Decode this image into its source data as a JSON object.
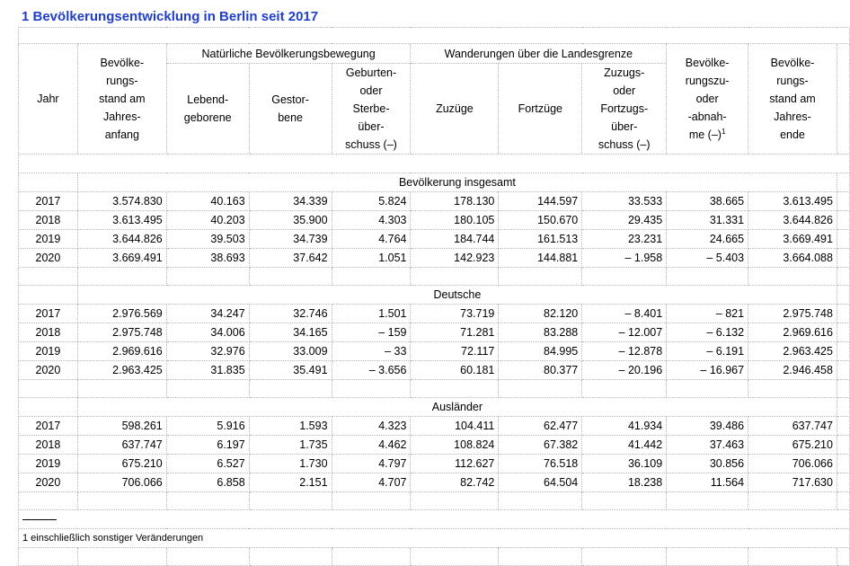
{
  "title": "1  Bevölkerungsentwicklung in Berlin seit 2017",
  "headers": {
    "jahr": "Jahr",
    "stand_anfang": "Bevölke-rungs-stand am Jahres-anfang",
    "natuerlich": "Natürliche Bevölkerungsbewegung",
    "lebend": "Lebend-geborene",
    "gestorben": "Gestor-bene",
    "geburten_sterbe": "Geburten-oder Sterbe-über-schuss (–)",
    "wanderungen": "Wanderungen über die Landesgrenze",
    "zuzuege": "Zuzüge",
    "fortzuege": "Fortzüge",
    "zuzugs_fortzugs": "Zuzugs-oder Fortzugs-über-schuss (–)",
    "zu_abnahme": "Bevölke-rungszu-oder -abnah-me (–)",
    "zu_abnahme_sup": "1",
    "stand_ende": "Bevölke-rungs-stand am Jahres-ende"
  },
  "sections": [
    {
      "label": "Bevölkerung insgesamt",
      "rows": [
        [
          "2017",
          "3.574.830",
          "40.163",
          "34.339",
          "5.824",
          "178.130",
          "144.597",
          "33.533",
          "38.665",
          "3.613.495"
        ],
        [
          "2018",
          "3.613.495",
          "40.203",
          "35.900",
          "4.303",
          "180.105",
          "150.670",
          "29.435",
          "31.331",
          "3.644.826"
        ],
        [
          "2019",
          "3.644.826",
          "39.503",
          "34.739",
          "4.764",
          "184.744",
          "161.513",
          "23.231",
          "24.665",
          "3.669.491"
        ],
        [
          "2020",
          "3.669.491",
          "38.693",
          "37.642",
          "1.051",
          "142.923",
          "144.881",
          "– 1.958",
          "– 5.403",
          "3.664.088"
        ]
      ]
    },
    {
      "label": "Deutsche",
      "rows": [
        [
          "2017",
          "2.976.569",
          "34.247",
          "32.746",
          "1.501",
          "73.719",
          "82.120",
          "– 8.401",
          "– 821",
          "2.975.748"
        ],
        [
          "2018",
          "2.975.748",
          "34.006",
          "34.165",
          "– 159",
          "71.281",
          "83.288",
          "– 12.007",
          "– 6.132",
          "2.969.616"
        ],
        [
          "2019",
          "2.969.616",
          "32.976",
          "33.009",
          "– 33",
          "72.117",
          "84.995",
          "– 12.878",
          "– 6.191",
          "2.963.425"
        ],
        [
          "2020",
          "2.963.425",
          "31.835",
          "35.491",
          "– 3.656",
          "60.181",
          "80.377",
          "– 20.196",
          "– 16.967",
          "2.946.458"
        ]
      ]
    },
    {
      "label": "Ausländer",
      "rows": [
        [
          "2017",
          "598.261",
          "5.916",
          "1.593",
          "4.323",
          "104.411",
          "62.477",
          "41.934",
          "39.486",
          "637.747"
        ],
        [
          "2018",
          "637.747",
          "6.197",
          "1.735",
          "4.462",
          "108.824",
          "67.382",
          "41.442",
          "37.463",
          "675.210"
        ],
        [
          "2019",
          "675.210",
          "6.527",
          "1.730",
          "4.797",
          "112.627",
          "76.518",
          "36.109",
          "30.856",
          "706.066"
        ],
        [
          "2020",
          "706.066",
          "6.858",
          "2.151",
          "4.707",
          "82.742",
          "64.504",
          "18.238",
          "11.564",
          "717.630"
        ]
      ]
    }
  ],
  "footnote": "1 einschließlich sonstiger Veränderungen"
}
